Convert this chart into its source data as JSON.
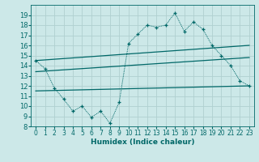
{
  "xlabel": "Humidex (Indice chaleur)",
  "bg_color": "#cce8e8",
  "grid_color": "#b0d0d0",
  "line_color": "#006868",
  "ylim": [
    8,
    20
  ],
  "xlim": [
    -0.5,
    23.5
  ],
  "yticks": [
    8,
    9,
    10,
    11,
    12,
    13,
    14,
    15,
    16,
    17,
    18,
    19
  ],
  "xticks": [
    0,
    1,
    2,
    3,
    4,
    5,
    6,
    7,
    8,
    9,
    10,
    11,
    12,
    13,
    14,
    15,
    16,
    17,
    18,
    19,
    20,
    21,
    22,
    23
  ],
  "series": {
    "curve_dotted": {
      "x": [
        0,
        1,
        2,
        3,
        4,
        5,
        6,
        7,
        8,
        9,
        10,
        11,
        12,
        13,
        14,
        15,
        16,
        17,
        18,
        19,
        20,
        21,
        22,
        23
      ],
      "y": [
        14.5,
        13.7,
        11.8,
        10.7,
        9.5,
        10.0,
        8.9,
        9.5,
        8.3,
        10.4,
        16.2,
        17.1,
        18.0,
        17.8,
        18.0,
        19.2,
        17.4,
        18.3,
        17.6,
        16.0,
        15.0,
        14.0,
        12.5,
        12.0
      ]
    },
    "line_upper": {
      "x": [
        0,
        23
      ],
      "y": [
        14.5,
        16.0
      ]
    },
    "line_mid": {
      "x": [
        0,
        23
      ],
      "y": [
        13.4,
        14.8
      ]
    },
    "line_lower": {
      "x": [
        0,
        23
      ],
      "y": [
        11.5,
        12.0
      ]
    }
  }
}
